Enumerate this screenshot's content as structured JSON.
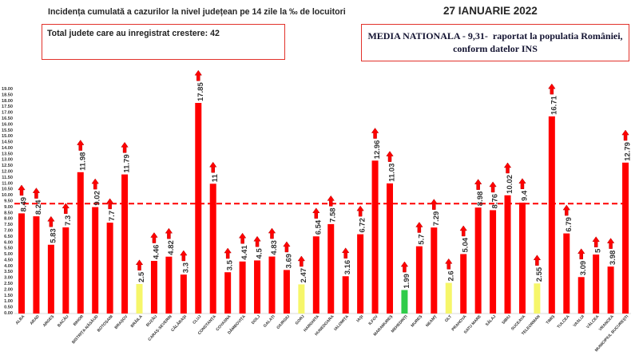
{
  "chart_data": {
    "type": "bar",
    "title": "Incidența cumulată a cazurilor la nivel județean pe 14 zile la ‰ de locuitori",
    "date": "27 IANUARIE 2022",
    "summary_box": "Total judete care au inregistrat crestere: 42",
    "average_box": {
      "line1": "MEDIA NATIONALA - 9,31-  raportat la populatia României,",
      "line2": "conform datelor INS"
    },
    "xlabel": "",
    "ylabel": "",
    "ylim": [
      0,
      19
    ],
    "grid": false,
    "y_tick_labels": [
      "0.00",
      "0.50",
      "1.00",
      "1.50",
      "2.00",
      "2.50",
      "3.00",
      "3.50",
      "4.00",
      "4.50",
      "5.00",
      "5.50",
      "6.00",
      "6.50",
      "7.00",
      "7.50",
      "8.00",
      "8.50",
      "9.00",
      "9.50",
      "10.00",
      "10.50",
      "11.00",
      "11.50",
      "12.00",
      "12.50",
      "13.00",
      "13.50",
      "14.00",
      "14.50",
      "15.00",
      "15.50",
      "16.00",
      "16.50",
      "17.00",
      "17.50",
      "18.00",
      "18.50",
      "19.00"
    ],
    "categories": [
      "ALBA",
      "ARAD",
      "ARGEȘ",
      "BACĂU",
      "BIHOR",
      "BISTRIȚA-NĂSĂUD",
      "BOTOȘANI",
      "BRAȘOV",
      "BRĂILA",
      "BUZĂU",
      "CARAȘ-SEVERIN",
      "CĂLĂRAȘI",
      "CLUJ",
      "CONSTANȚA",
      "COVASNA",
      "DÂMBOVIȚA",
      "DOLJ",
      "GALAȚI",
      "GIURGIU",
      "GORJ",
      "HARGHITA",
      "HUNEDOARA",
      "IALOMIȚA",
      "IAȘI",
      "ILFOV",
      "MARAMUREȘ",
      "MEHEDINȚI",
      "MUREȘ",
      "NEAMȚ",
      "OLT",
      "PRAHOVA",
      "SATU MARE",
      "SĂLAJ",
      "SIBIU",
      "SUCEAVA",
      "TELEORMAN",
      "TIMIȘ",
      "TULCEA",
      "VASLUI",
      "VÂLCEA",
      "VRANCEA",
      "MUNICIPIUL BUCUREȘTI"
    ],
    "values": [
      8.49,
      8.24,
      5.83,
      7.3,
      11.98,
      9.02,
      7.7,
      11.79,
      2.5,
      4.46,
      4.82,
      3.3,
      17.85,
      11,
      3.5,
      4.41,
      4.5,
      4.83,
      3.69,
      2.47,
      6.54,
      7.58,
      3.16,
      6.72,
      12.96,
      11.03,
      1.99,
      5.7,
      7.29,
      2.6,
      5.04,
      8.98,
      8.76,
      10.02,
      9.4,
      2.55,
      16.71,
      6.79,
      3.09,
      5,
      3.98,
      12.79
    ],
    "bar_colors": [
      "#ff0000",
      "#ff0000",
      "#ff0000",
      "#ff0000",
      "#ff0000",
      "#ff0000",
      "#ff0000",
      "#ff0000",
      "#f6f66a",
      "#ff0000",
      "#ff0000",
      "#ff0000",
      "#ff0000",
      "#ff0000",
      "#ff0000",
      "#ff0000",
      "#ff0000",
      "#ff0000",
      "#ff0000",
      "#f6f66a",
      "#ff0000",
      "#ff0000",
      "#ff0000",
      "#ff0000",
      "#ff0000",
      "#ff0000",
      "#2fcc4a",
      "#ff0000",
      "#ff0000",
      "#f6f66a",
      "#ff0000",
      "#ff0000",
      "#ff0000",
      "#ff0000",
      "#ff0000",
      "#f6f66a",
      "#ff0000",
      "#ff0000",
      "#ff0000",
      "#ff0000",
      "#ff0000",
      "#ff0000"
    ],
    "trend_up": [
      true,
      true,
      true,
      true,
      true,
      true,
      true,
      true,
      true,
      true,
      true,
      true,
      true,
      true,
      true,
      true,
      true,
      true,
      true,
      true,
      true,
      true,
      true,
      true,
      true,
      true,
      true,
      true,
      true,
      true,
      true,
      true,
      true,
      true,
      true,
      true,
      true,
      true,
      true,
      true,
      true,
      true
    ],
    "mean_line": {
      "value": 9.31,
      "color": "#ff0000",
      "style": "dashed"
    }
  }
}
